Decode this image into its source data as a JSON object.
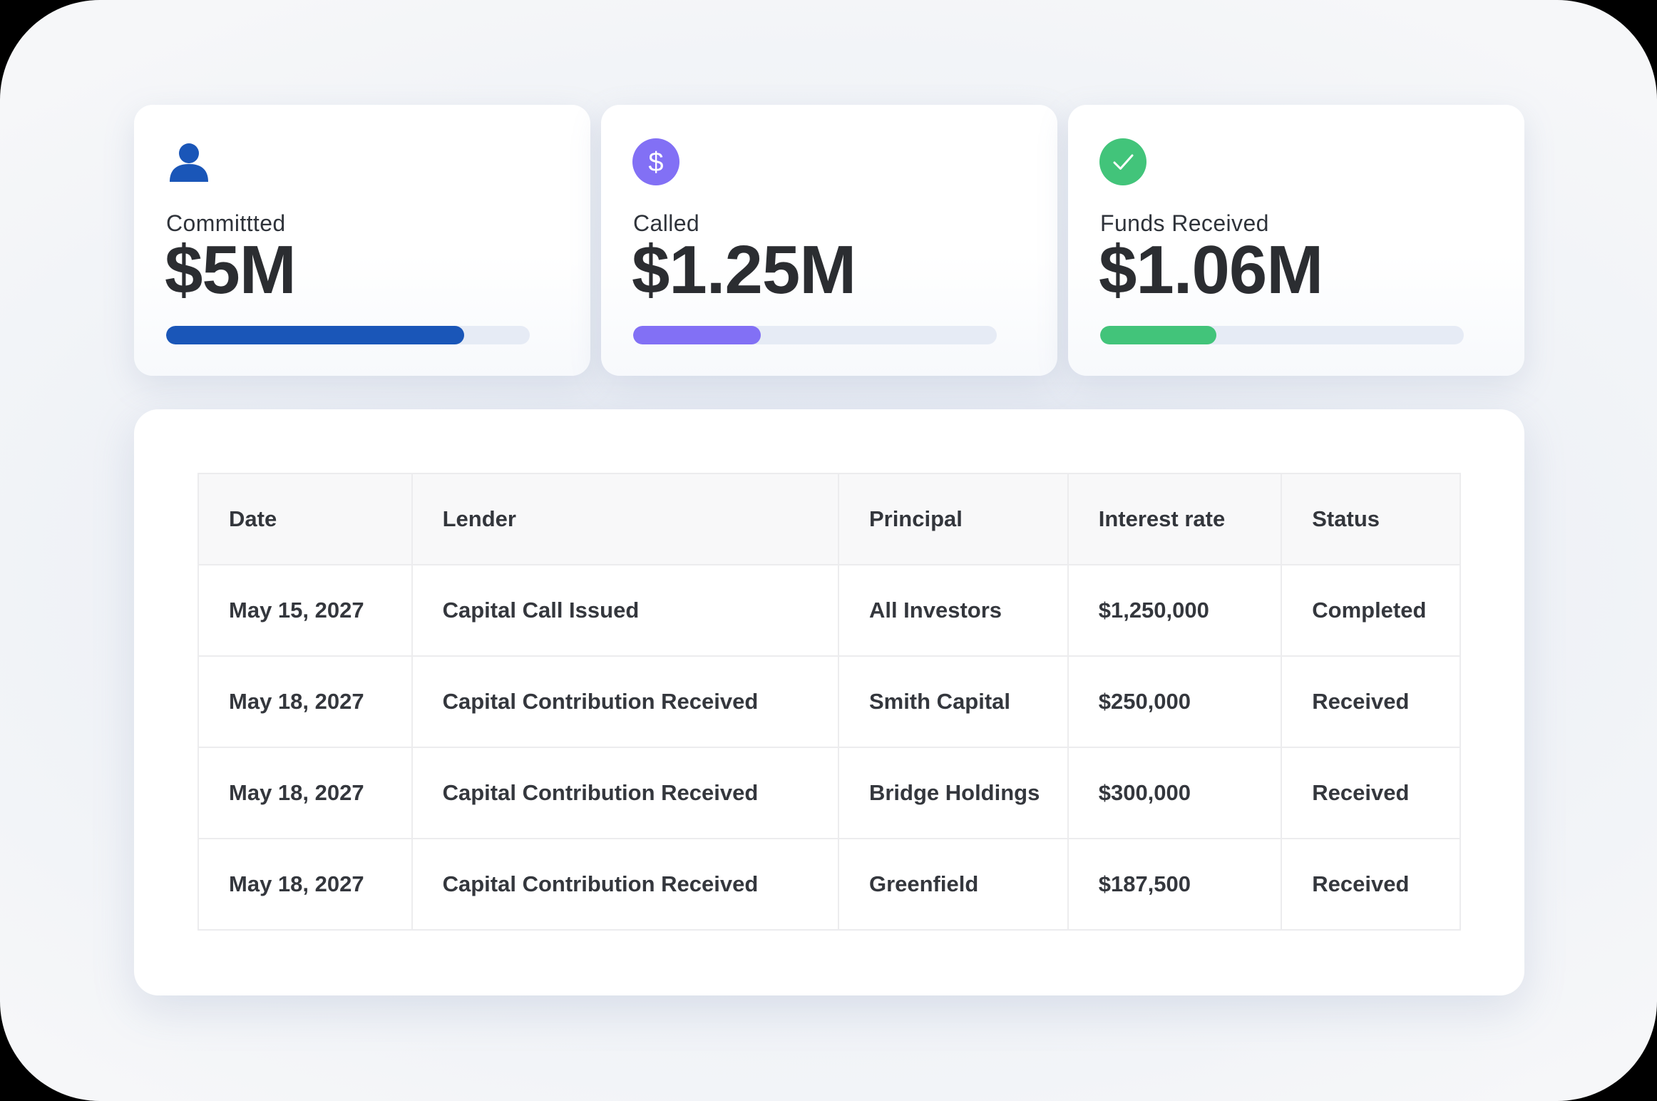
{
  "cards": [
    {
      "label": "Committted",
      "value": "$5M",
      "progress": 0.82,
      "icon": "user-icon",
      "color": "#1a56b8"
    },
    {
      "label": "Called",
      "value": "$1.25M",
      "progress": 0.35,
      "icon": "dollar-icon",
      "color": "#8270f5"
    },
    {
      "label": "Funds Received",
      "value": "$1.06M",
      "progress": 0.32,
      "icon": "check-icon",
      "color": "#42c47a"
    }
  ],
  "table": {
    "headers": [
      "Date",
      "Lender",
      "Principal",
      "Interest rate",
      "Status"
    ],
    "rows": [
      [
        "May 15, 2027",
        "Capital Call Issued",
        "All Investors",
        "$1,250,000",
        "Completed"
      ],
      [
        "May 18, 2027",
        "Capital Contribution Received",
        "Smith Capital",
        "$250,000",
        "Received"
      ],
      [
        "May 18, 2027",
        "Capital Contribution Received",
        "Bridge Holdings",
        "$300,000",
        "Received"
      ],
      [
        "May 18, 2027",
        "Capital Contribution Received",
        "Greenfield",
        "$187,500",
        "Received"
      ]
    ]
  }
}
